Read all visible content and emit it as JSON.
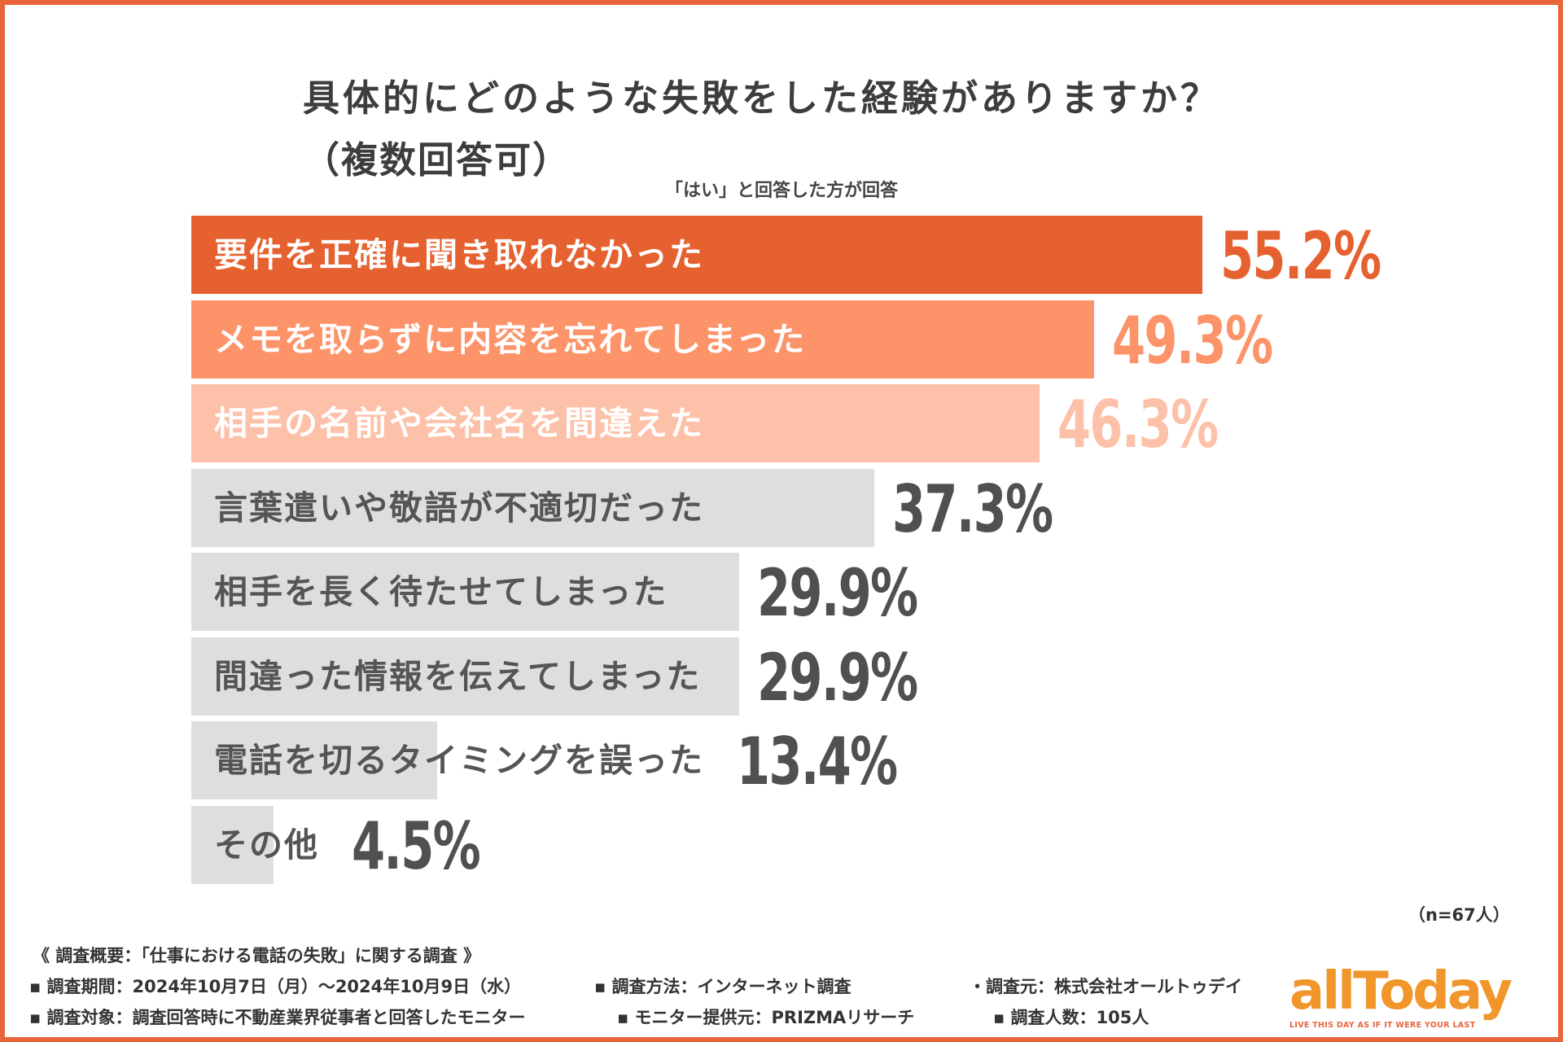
{
  "chart_data": {
    "type": "bar",
    "orientation": "horizontal",
    "title": "具体的にどのような失敗をした経験がありますか？",
    "title_line2": "（複数回答可）",
    "subtitle": "「はい」と回答した方が回答",
    "categories": [
      "要件を正確に聞き取れなかった",
      "メモを取らずに内容を忘れてしまった",
      "相手の名前や会社名を間違えた",
      "言葉遣いや敬語が不適切だった",
      "相手を長く待たせてしまった",
      "間違った情報を伝えてしまった",
      "電話を切るタイミングを誤った",
      "その他"
    ],
    "values": [
      55.2,
      49.3,
      46.3,
      37.3,
      29.9,
      29.9,
      13.4,
      4.5
    ],
    "value_labels": [
      "55.2%",
      "49.3%",
      "46.3%",
      "37.3%",
      "29.9%",
      "29.9%",
      "13.4%",
      "4.5%"
    ],
    "unit": "%",
    "xlim": [
      0,
      100
    ],
    "bar_colors": [
      "#e5612f",
      "#fd9369",
      "#fdc0a8",
      "#dedede",
      "#dedede",
      "#dedede",
      "#dedede",
      "#dedede"
    ],
    "label_colors": [
      "#ffffff",
      "#ffffff",
      "#ffffff",
      "#555555",
      "#555555",
      "#555555",
      "#555555",
      "#555555"
    ],
    "value_colors": [
      "#e5612f",
      "#fd9369",
      "#fdc0a8",
      "#505050",
      "#505050",
      "#505050",
      "#505050",
      "#505050"
    ],
    "sample_size": "（n=67人）"
  },
  "footer": {
    "summary": "《 調査概要：「仕事における電話の失敗」に関する調査 》",
    "period": "▪ 調査期間：2024年10月7日（月）〜2024年10月9日（水）",
    "method": "▪ 調査方法：インターネット調査",
    "source": "・調査元：株式会社オールトゥデイ",
    "target": "▪ 調査対象：調査回答時に不動産業界従事者と回答したモニター",
    "provider": "▪ モニター提供元：PRIZMAリサーチ",
    "count": "▪ 調査人数：105人"
  },
  "logo": {
    "text": "allToday",
    "tagline": "LIVE THIS DAY AS IF IT WERE YOUR LAST"
  },
  "colors": {
    "frame": "#e8643a",
    "logo": "#f0962a"
  }
}
